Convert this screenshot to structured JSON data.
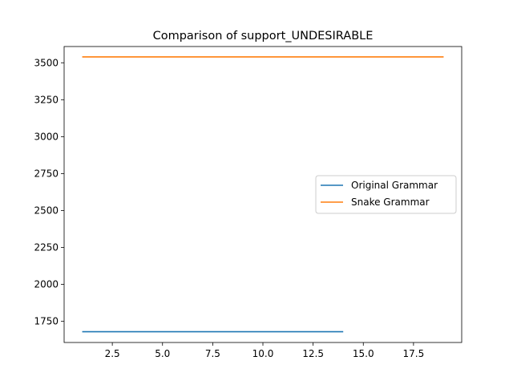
{
  "chart_data": {
    "type": "line",
    "title": "Comparison of support_UNDESIRABLE",
    "xlabel": "",
    "ylabel": "",
    "xlim": [
      0.1,
      19.9
    ],
    "ylim": [
      1607,
      3610
    ],
    "xticks": [
      2.5,
      5.0,
      7.5,
      10.0,
      12.5,
      15.0,
      17.5
    ],
    "xtick_labels": [
      "2.5",
      "5.0",
      "7.5",
      "10.0",
      "12.5",
      "15.0",
      "17.5"
    ],
    "yticks": [
      1750,
      2000,
      2250,
      2500,
      2750,
      3000,
      3250,
      3500
    ],
    "ytick_labels": [
      "1750",
      "2000",
      "2250",
      "2500",
      "2750",
      "3000",
      "3250",
      "3500"
    ],
    "grid": false,
    "legend_position": "center-right",
    "series": [
      {
        "name": "Original Grammar",
        "color": "#1f77b4",
        "x": [
          1,
          2,
          3,
          4,
          5,
          6,
          7,
          8,
          9,
          10,
          11,
          12,
          13,
          14
        ],
        "values": [
          1680,
          1680,
          1680,
          1680,
          1680,
          1680,
          1680,
          1680,
          1680,
          1680,
          1680,
          1680,
          1680,
          1680
        ]
      },
      {
        "name": "Snake Grammar",
        "color": "#ff7f0e",
        "x": [
          1,
          2,
          3,
          4,
          5,
          6,
          7,
          8,
          9,
          10,
          11,
          12,
          13,
          14,
          15,
          16,
          17,
          18,
          19
        ],
        "values": [
          3540,
          3540,
          3540,
          3540,
          3540,
          3540,
          3540,
          3540,
          3540,
          3540,
          3540,
          3540,
          3540,
          3540,
          3540,
          3540,
          3540,
          3540,
          3540
        ]
      }
    ]
  }
}
